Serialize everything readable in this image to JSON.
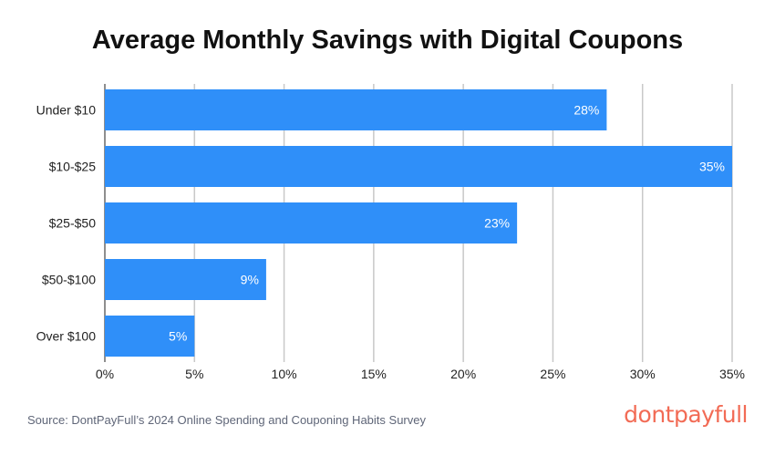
{
  "chart_data": {
    "type": "bar",
    "orientation": "horizontal",
    "title": "Average Monthly Savings with Digital Coupons",
    "categories": [
      "Under $10",
      "$10-$25",
      "$25-$50",
      "$50-$100",
      "Over $100"
    ],
    "values": [
      28,
      35,
      23,
      9,
      5
    ],
    "data_labels": [
      "28%",
      "35%",
      "23%",
      "9%",
      "5%"
    ],
    "xlim": [
      0,
      35
    ],
    "xticks": [
      "0%",
      "5%",
      "10%",
      "15%",
      "20%",
      "25%",
      "30%",
      "35%"
    ],
    "grid": true,
    "bar_color": "#2f8ff9"
  },
  "source": "Source: DontPayFull’s 2024 Online Spending and Couponing Habits Survey",
  "logo": "dontpayfull"
}
